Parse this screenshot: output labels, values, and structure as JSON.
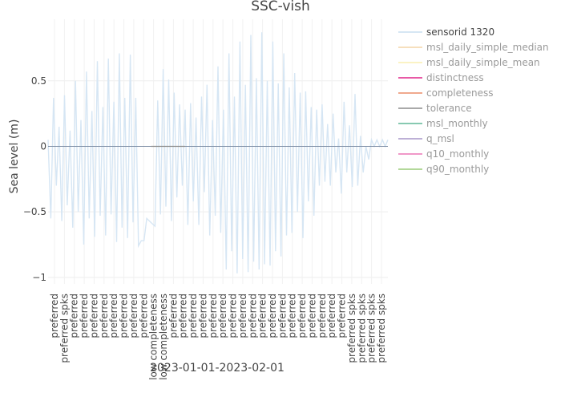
{
  "chart_data": {
    "type": "line",
    "title": "SSC-vish",
    "xlabel": "2023-01-01-2023-02-01",
    "ylabel": "Sea level (m)",
    "ylim": [
      -1.05,
      0.97
    ],
    "yticks": [
      {
        "value": 0.5,
        "label": "0.5"
      },
      {
        "value": 0,
        "label": "0"
      },
      {
        "value": -0.5,
        "label": "−0.5"
      },
      {
        "value": -1,
        "label": "−1"
      }
    ],
    "grid": true,
    "legend_position": "right",
    "x_tick_labels": [
      "preferred",
      "preferred spks",
      "preferred",
      "preferred",
      "preferred",
      "preferred",
      "preferred",
      "preferred",
      "preferred",
      "preferred",
      "low completeness",
      "low completeness",
      "preferred",
      "preferred",
      "preferred",
      "preferred",
      "preferred",
      "preferred",
      "preferred",
      "preferred",
      "preferred",
      "preferred",
      "preferred",
      "preferred",
      "preferred",
      "preferred",
      "preferred",
      "preferred",
      "preferred",
      "preferred",
      "preferred spks",
      "preferred spks",
      "preferred spks",
      "preferred spks"
    ],
    "series": [
      {
        "name": "sensorid 1320",
        "color": "#d6e6f4",
        "x_days": [
          0,
          0.25,
          0.5,
          0.75,
          1,
          1.25,
          1.5,
          1.75,
          2,
          2.25,
          2.5,
          2.75,
          3,
          3.25,
          3.5,
          3.75,
          4,
          4.25,
          4.5,
          4.75,
          5,
          5.25,
          5.5,
          5.75,
          6,
          6.25,
          6.5,
          6.75,
          7,
          7.25,
          7.5,
          7.75,
          8,
          8.25,
          8.5,
          8.75,
          9,
          9.25,
          9.5,
          9.75,
          10,
          10.25,
          10.5,
          10.75,
          11,
          11.25,
          11.5,
          11.75,
          12,
          12.25,
          12.5,
          12.75,
          13,
          13.25,
          13.5,
          13.75,
          14,
          14.25,
          14.5,
          14.75,
          15,
          15.25,
          15.5,
          15.75,
          16,
          16.25,
          16.5,
          16.75,
          17,
          17.25,
          17.5,
          17.75,
          18,
          18.25,
          18.5,
          18.75,
          19,
          19.25,
          19.5,
          19.75,
          20,
          20.25,
          20.5,
          20.75,
          21,
          21.25,
          21.5,
          21.75,
          22,
          22.25,
          22.5,
          22.75,
          23,
          23.25,
          23.5,
          23.75,
          24,
          24.25,
          24.5,
          24.75,
          25,
          25.25,
          25.5,
          25.75,
          26,
          26.25,
          26.5,
          26.75,
          27,
          27.25,
          27.5,
          27.75,
          28,
          28.25,
          28.5,
          28.75,
          29,
          29.25,
          29.5,
          29.75,
          30,
          30.25,
          30.5,
          30.75,
          31
        ],
        "y": [
          0.05,
          -0.55,
          0.37,
          -0.3,
          0.15,
          -0.57,
          0.39,
          -0.45,
          0.12,
          -0.62,
          0.5,
          -0.5,
          0.2,
          -0.75,
          0.57,
          -0.55,
          0.27,
          -0.69,
          0.65,
          -0.53,
          0.3,
          -0.68,
          0.67,
          -0.52,
          0.34,
          -0.73,
          0.71,
          -0.62,
          0.37,
          -0.7,
          0.7,
          -0.58,
          0.37,
          -0.76,
          -0.72,
          -0.72,
          -0.55,
          -0.57,
          -0.59,
          -0.61,
          0.35,
          -0.52,
          0.59,
          -0.46,
          0.51,
          -0.57,
          0.41,
          -0.39,
          0.32,
          -0.3,
          0.28,
          -0.6,
          0.33,
          -0.42,
          0.22,
          -0.6,
          0.38,
          -0.35,
          0.47,
          -0.68,
          0.2,
          -0.53,
          0.61,
          -0.66,
          0.28,
          -0.94,
          0.71,
          -0.8,
          0.38,
          -0.97,
          0.8,
          -0.86,
          0.47,
          -0.96,
          0.85,
          -0.88,
          0.52,
          -0.94,
          0.87,
          -0.9,
          0.5,
          -0.91,
          0.8,
          -0.8,
          0.48,
          -0.84,
          0.71,
          -0.68,
          0.45,
          -0.66,
          0.56,
          -0.5,
          0.41,
          -0.7,
          0.42,
          -0.42,
          0.3,
          -0.53,
          0.28,
          -0.3,
          0.32,
          -0.27,
          0.17,
          -0.3,
          0.25,
          -0.2,
          0.06,
          -0.36,
          0.34,
          -0.2,
          0.16,
          -0.31,
          0.4,
          -0.3,
          0.08,
          -0.2,
          0.0,
          -0.1,
          0.05,
          0.0,
          0.05,
          0.0,
          0.05,
          0.0,
          0.05
        ]
      },
      {
        "name": "msl_daily_simple_median",
        "color": "#f6dfbd",
        "x_days": [
          0,
          9.4,
          12.5,
          31
        ],
        "y": [
          0,
          0,
          0,
          0
        ]
      },
      {
        "name": "msl_daily_simple_mean",
        "color": "#fbf3c4",
        "x_days": [
          0,
          9.4,
          12.5,
          31
        ],
        "y": [
          0,
          0,
          0,
          0
        ]
      },
      {
        "name": "distinctness",
        "color": "#e85aa6",
        "x_days": [],
        "y": []
      },
      {
        "name": "completeness",
        "color": "#f0a98e",
        "x_days": [],
        "y": []
      },
      {
        "name": "tolerance",
        "color": "#a9a9a9",
        "x_days": [
          9.4,
          12.5
        ],
        "y": [
          0,
          0
        ]
      },
      {
        "name": "msl_monthly",
        "color": "#87c9b1",
        "x_days": [],
        "y": []
      },
      {
        "name": "q_msl",
        "color": "#bdb0d6",
        "x_days": [],
        "y": []
      },
      {
        "name": "q10_monthly",
        "color": "#f098c8",
        "x_days": [],
        "y": []
      },
      {
        "name": "q90_monthly",
        "color": "#b3d89a",
        "x_days": [],
        "y": []
      }
    ]
  }
}
